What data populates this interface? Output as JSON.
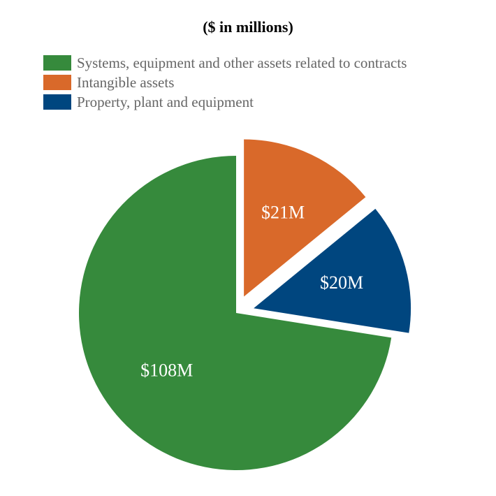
{
  "chart_data": {
    "type": "pie",
    "title": "($ in millions)",
    "legend_position": "top-left",
    "slices": [
      {
        "name": "Systems, equipment and other assets related to contracts",
        "value": 108,
        "label": "$108M",
        "color": "#368a3c",
        "exploded": false
      },
      {
        "name": "Intangible assets",
        "value": 21,
        "label": "$21M",
        "color": "#d9692a",
        "exploded": true
      },
      {
        "name": "Property, plant and equipment",
        "value": 20,
        "label": "$20M",
        "color": "#00467f",
        "exploded": true
      }
    ]
  }
}
